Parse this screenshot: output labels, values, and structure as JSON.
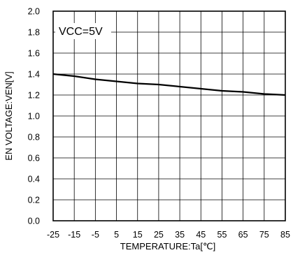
{
  "chart_data": {
    "type": "line",
    "xlabel": "TEMPERATURE:Ta[℃]",
    "ylabel": "EN VOLTAGE:VEN[V]",
    "xlim": [
      -25,
      85
    ],
    "ylim": [
      0.0,
      2.0
    ],
    "x_ticks": [
      "-25",
      "-15",
      "-5",
      "5",
      "15",
      "25",
      "35",
      "45",
      "55",
      "65",
      "75",
      "85"
    ],
    "y_ticks": [
      "0.0",
      "0.2",
      "0.4",
      "0.6",
      "0.8",
      "1.0",
      "1.2",
      "1.4",
      "1.6",
      "1.8",
      "2.0"
    ],
    "grid": true,
    "annotation": "VCC=5V",
    "series": [
      {
        "x": [
          -25,
          -15,
          -5,
          5,
          15,
          25,
          35,
          45,
          55,
          65,
          75,
          85
        ],
        "y": [
          1.4,
          1.38,
          1.35,
          1.33,
          1.31,
          1.3,
          1.28,
          1.26,
          1.24,
          1.23,
          1.21,
          1.2
        ]
      }
    ]
  }
}
